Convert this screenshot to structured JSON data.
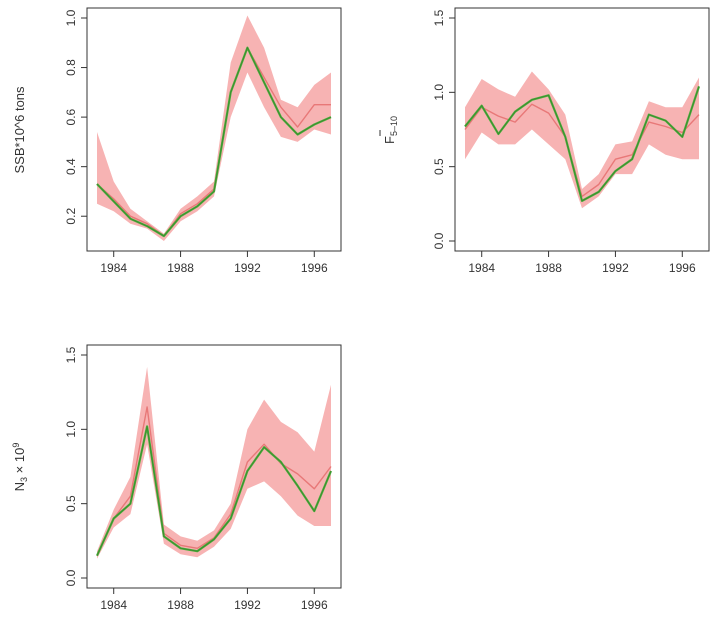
{
  "chart_data": [
    {
      "type": "line",
      "ylabel": "SSB*10^6 tons",
      "xlim": [
        1983,
        1997
      ],
      "ylim": [
        0.1,
        1.0
      ],
      "xticks": [
        1984,
        1988,
        1992,
        1996
      ],
      "xtick_labels": [
        "1984",
        "1988",
        "1992",
        "1996"
      ],
      "yticks": [
        0.2,
        0.4,
        0.6,
        0.8,
        1.0
      ],
      "ytick_labels": [
        "0.2",
        "0.4",
        "0.6",
        "0.8",
        "1.0"
      ],
      "x": [
        1983,
        1984,
        1985,
        1986,
        1987,
        1988,
        1989,
        1990,
        1991,
        1992,
        1993,
        1994,
        1995,
        1996,
        1997
      ],
      "series": [
        {
          "values": [
            0.33,
            0.27,
            0.2,
            0.17,
            0.12,
            0.21,
            0.25,
            0.31,
            0.7,
            0.88,
            0.76,
            0.64,
            0.56,
            0.65,
            0.65
          ],
          "color": "#e87878"
        },
        {
          "values": [
            0.33,
            0.26,
            0.19,
            0.16,
            0.12,
            0.2,
            0.24,
            0.3,
            0.7,
            0.88,
            0.74,
            0.6,
            0.53,
            0.57,
            0.6
          ],
          "color": "#4caf3c"
        }
      ],
      "band": {
        "lower": [
          0.25,
          0.22,
          0.17,
          0.15,
          0.1,
          0.18,
          0.22,
          0.28,
          0.6,
          0.78,
          0.64,
          0.52,
          0.5,
          0.55,
          0.53
        ],
        "upper": [
          0.54,
          0.34,
          0.23,
          0.18,
          0.13,
          0.23,
          0.28,
          0.34,
          0.82,
          1.01,
          0.88,
          0.67,
          0.64,
          0.73,
          0.78
        ],
        "color": "#f7b3b3"
      }
    },
    {
      "type": "line",
      "ylabel_main": "F",
      "ylabel_sub": "5–10",
      "xlim": [
        1983,
        1997
      ],
      "ylim": [
        0.0,
        1.5
      ],
      "xticks": [
        1984,
        1988,
        1992,
        1996
      ],
      "xtick_labels": [
        "1984",
        "1988",
        "1992",
        "1996"
      ],
      "yticks": [
        0.0,
        0.5,
        1.0,
        1.5
      ],
      "ytick_labels": [
        "0.0",
        "0.5",
        "1.0",
        "1.5"
      ],
      "x": [
        1983,
        1984,
        1985,
        1986,
        1987,
        1988,
        1989,
        1990,
        1991,
        1992,
        1993,
        1994,
        1995,
        1996,
        1997
      ],
      "series": [
        {
          "values": [
            0.75,
            0.9,
            0.84,
            0.8,
            0.92,
            0.86,
            0.7,
            0.3,
            0.38,
            0.55,
            0.58,
            0.8,
            0.77,
            0.73,
            0.85
          ],
          "color": "#e87878"
        },
        {
          "values": [
            0.77,
            0.91,
            0.72,
            0.87,
            0.95,
            0.98,
            0.7,
            0.27,
            0.33,
            0.47,
            0.55,
            0.85,
            0.81,
            0.7,
            1.04
          ],
          "color": "#4caf3c"
        }
      ],
      "band": {
        "lower": [
          0.55,
          0.73,
          0.65,
          0.65,
          0.75,
          0.65,
          0.55,
          0.22,
          0.3,
          0.45,
          0.45,
          0.65,
          0.58,
          0.55,
          0.55
        ],
        "upper": [
          0.9,
          1.09,
          1.02,
          0.97,
          1.14,
          1.02,
          0.85,
          0.35,
          0.45,
          0.65,
          0.67,
          0.94,
          0.9,
          0.9,
          1.1
        ],
        "color": "#f7b3b3"
      }
    },
    {
      "type": "line",
      "ylabel_main": "N",
      "ylabel_sub": "3",
      "ylabel_mid": " × 10",
      "ylabel_sup": "9",
      "xlim": [
        1983,
        1997
      ],
      "ylim": [
        0.0,
        1.5
      ],
      "xticks": [
        1984,
        1988,
        1992,
        1996
      ],
      "xtick_labels": [
        "1984",
        "1988",
        "1992",
        "1996"
      ],
      "yticks": [
        0.0,
        0.5,
        1.0,
        1.5
      ],
      "ytick_labels": [
        "0.0",
        "0.5",
        "1.0",
        "1.5"
      ],
      "x": [
        1983,
        1984,
        1985,
        1986,
        1987,
        1988,
        1989,
        1990,
        1991,
        1992,
        1993,
        1994,
        1995,
        1996,
        1997
      ],
      "series": [
        {
          "values": [
            0.15,
            0.4,
            0.55,
            1.15,
            0.3,
            0.22,
            0.2,
            0.27,
            0.43,
            0.78,
            0.9,
            0.77,
            0.7,
            0.6,
            0.75
          ],
          "color": "#e87878"
        },
        {
          "values": [
            0.15,
            0.4,
            0.5,
            1.02,
            0.28,
            0.2,
            0.18,
            0.26,
            0.4,
            0.72,
            0.88,
            0.78,
            0.62,
            0.45,
            0.72
          ],
          "color": "#4caf3c"
        }
      ],
      "band": {
        "lower": [
          0.13,
          0.34,
          0.43,
          0.9,
          0.23,
          0.16,
          0.14,
          0.21,
          0.33,
          0.6,
          0.65,
          0.55,
          0.42,
          0.35,
          0.35
        ],
        "upper": [
          0.18,
          0.46,
          0.68,
          1.42,
          0.36,
          0.28,
          0.25,
          0.32,
          0.5,
          1.0,
          1.2,
          1.05,
          0.98,
          0.85,
          1.3
        ],
        "color": "#f7b3b3"
      }
    }
  ]
}
